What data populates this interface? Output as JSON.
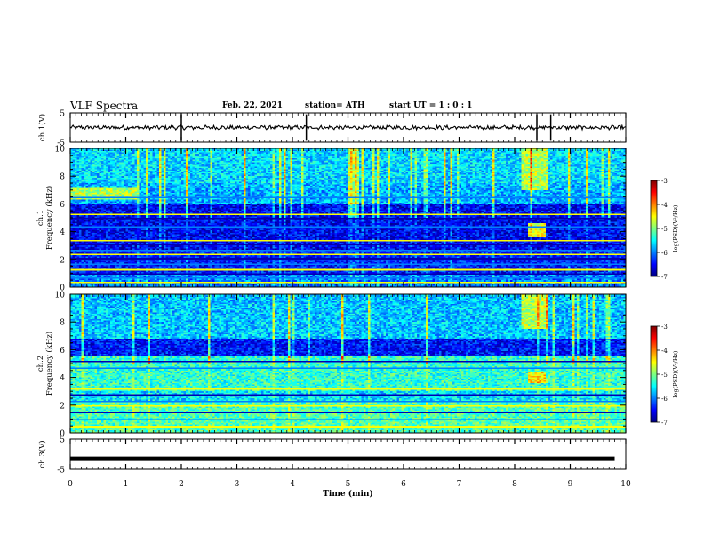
{
  "header": {
    "title": "VLF Spectra",
    "date": "Feb. 22, 2021",
    "station": "station= ATH",
    "start": "start UT = 1 : 0 : 1"
  },
  "chart_data": [
    {
      "type": "line",
      "panel": "ch1-waveform",
      "ylabel": "ch.1(V)",
      "ylim": [
        -5,
        5
      ],
      "yticks": [
        "5",
        "-5"
      ],
      "baseline": 0,
      "xlim": [
        0,
        10
      ]
    },
    {
      "type": "heatmap",
      "panel": "ch1-spectrogram",
      "ylabel": "ch.1\nFrequency (kHz)",
      "ylabel_lines": [
        "ch.1",
        "Frequency (kHz)"
      ],
      "ylim": [
        0,
        10
      ],
      "yticks": [
        "0",
        "2",
        "4",
        "6",
        "8",
        "10"
      ],
      "xlim": [
        0,
        10
      ],
      "colorbar": {
        "label": "log(PSD)(V²/Hz)",
        "range": [
          -7,
          -3
        ],
        "ticks": [
          "-3",
          "-4",
          "-5",
          "-6",
          "-7"
        ]
      }
    },
    {
      "type": "heatmap",
      "panel": "ch2-spectrogram",
      "ylabel": "ch.2\nFrequency (kHz)",
      "ylabel_lines": [
        "ch.2",
        "Frequency (kHz)"
      ],
      "ylim": [
        0,
        10
      ],
      "yticks": [
        "0",
        "2",
        "4",
        "6",
        "8",
        "10"
      ],
      "xlim": [
        0,
        10
      ],
      "colorbar": {
        "label": "log(PSD)(V²/Hz)",
        "range": [
          -7,
          -3
        ],
        "ticks": [
          "-3",
          "-4",
          "-5",
          "-6",
          "-7"
        ]
      }
    },
    {
      "type": "line",
      "panel": "ch3-waveform",
      "ylabel": "ch.3(V)",
      "ylim": [
        -5,
        5
      ],
      "yticks": [
        "5",
        "-5"
      ],
      "baseline": -1.5,
      "xlim": [
        0,
        10
      ]
    }
  ],
  "xaxis": {
    "label": "Time (min)",
    "ticks": [
      "0",
      "1",
      "2",
      "3",
      "4",
      "5",
      "6",
      "7",
      "8",
      "9",
      "10"
    ],
    "range": [
      0,
      10
    ]
  },
  "colors": {
    "jet": [
      "#00007f",
      "#0000ff",
      "#007fff",
      "#00ffff",
      "#7fff7f",
      "#ffff00",
      "#ff7f00",
      "#ff0000",
      "#7f0000"
    ]
  }
}
